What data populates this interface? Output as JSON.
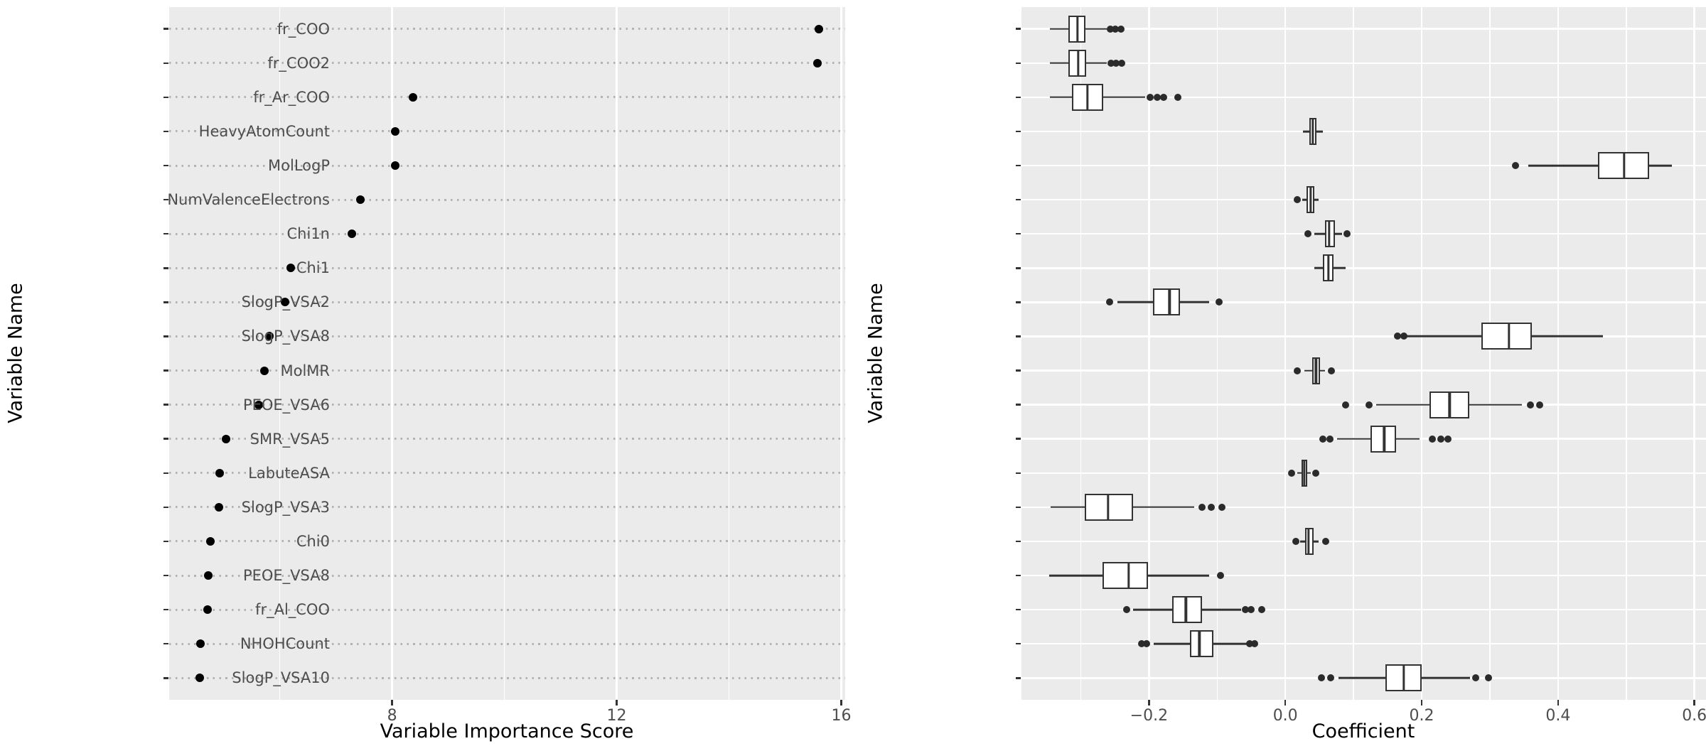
{
  "colors": {
    "panel_background": "#EBEBEB",
    "grid_major": "#FFFFFF",
    "dotted_guide": "#B3B3B3",
    "tick_mark": "#333333",
    "tick_label": "#4D4D4D",
    "axis_title": "#000000",
    "point": "#000000",
    "box_border": "#333333",
    "box_fill": "#FFFFFF"
  },
  "categories": [
    "fr_COO",
    "fr_COO2",
    "fr_Ar_COO",
    "HeavyAtomCount",
    "MolLogP",
    "NumValenceElectrons",
    "Chi1n",
    "Chi1",
    "SlogP_VSA2",
    "SlogP_VSA8",
    "MolMR",
    "PEOE_VSA6",
    "SMR_VSA5",
    "LabuteASA",
    "SlogP_VSA3",
    "Chi0",
    "PEOE_VSA8",
    "fr_Al_COO",
    "NHOHCount",
    "SlogP_VSA10"
  ],
  "chart_data": [
    {
      "type": "scatter",
      "subtype": "cleveland-dot-plot",
      "title": "",
      "xlabel": "Variable Importance Score",
      "ylabel": "Variable Name",
      "xlim": [
        4.03,
        16.07
      ],
      "xticks": [
        8,
        12,
        16
      ],
      "xtick_labels": [
        "8",
        "12",
        "16"
      ],
      "xticks_minor": [
        6,
        10,
        14
      ],
      "grid": "major-vertical-white-with-dotted-row-guides",
      "legend": "none",
      "categories": [
        "fr_COO",
        "fr_COO2",
        "fr_Ar_COO",
        "HeavyAtomCount",
        "MolLogP",
        "NumValenceElectrons",
        "Chi1n",
        "Chi1",
        "SlogP_VSA2",
        "SlogP_VSA8",
        "MolMR",
        "PEOE_VSA6",
        "SMR_VSA5",
        "LabuteASA",
        "SlogP_VSA3",
        "Chi0",
        "PEOE_VSA8",
        "fr_Al_COO",
        "NHOHCount",
        "SlogP_VSA10"
      ],
      "values": [
        15.6,
        15.58,
        8.37,
        8.06,
        8.05,
        7.43,
        7.29,
        6.19,
        6.09,
        5.82,
        5.73,
        5.63,
        5.04,
        4.93,
        4.91,
        4.76,
        4.72,
        4.71,
        4.59,
        4.57
      ]
    },
    {
      "type": "boxplot",
      "orientation": "horizontal",
      "title": "",
      "xlabel": "Coefficient",
      "ylabel": "Variable Name",
      "xlim": [
        -0.387,
        0.617
      ],
      "xticks": [
        -0.2,
        0.0,
        0.2,
        0.4,
        0.6
      ],
      "xtick_labels": [
        "−0.2",
        "0.0",
        "0.2",
        "0.4",
        "0.6"
      ],
      "xticks_minor": [
        -0.3,
        -0.1,
        0.1,
        0.3,
        0.5
      ],
      "grid": "major-white",
      "legend": "none",
      "categories": [
        "fr_COO",
        "fr_COO2",
        "fr_Ar_COO",
        "HeavyAtomCount",
        "MolLogP",
        "NumValenceElectrons",
        "Chi1n",
        "Chi1",
        "SlogP_VSA2",
        "SlogP_VSA8",
        "MolMR",
        "PEOE_VSA6",
        "SMR_VSA5",
        "LabuteASA",
        "SlogP_VSA3",
        "Chi0",
        "PEOE_VSA8",
        "fr_Al_COO",
        "NHOHCount",
        "SlogP_VSA10"
      ],
      "boxes": [
        {
          "whisker_low": -0.345,
          "q1": -0.318,
          "median": -0.305,
          "q3": -0.293,
          "whisker_high": -0.262,
          "outliers": [
            -0.257,
            -0.249,
            -0.241
          ]
        },
        {
          "whisker_low": -0.345,
          "q1": -0.318,
          "median": -0.304,
          "q3": -0.292,
          "whisker_high": -0.262,
          "outliers": [
            -0.256,
            -0.248,
            -0.24
          ]
        },
        {
          "whisker_low": -0.345,
          "q1": -0.313,
          "median": -0.29,
          "q3": -0.267,
          "whisker_high": -0.206,
          "outliers": [
            -0.198,
            -0.188,
            -0.179,
            -0.158
          ]
        },
        {
          "whisker_low": 0.026,
          "q1": 0.035,
          "median": 0.04,
          "q3": 0.046,
          "whisker_high": 0.055,
          "outliers": []
        },
        {
          "whisker_low": 0.356,
          "q1": 0.459,
          "median": 0.497,
          "q3": 0.534,
          "whisker_high": 0.567,
          "outliers": [
            0.338
          ]
        },
        {
          "whisker_low": 0.025,
          "q1": 0.031,
          "median": 0.037,
          "q3": 0.043,
          "whisker_high": 0.049,
          "outliers": [
            0.018
          ]
        },
        {
          "whisker_low": 0.043,
          "q1": 0.058,
          "median": 0.064,
          "q3": 0.073,
          "whisker_high": 0.083,
          "outliers": [
            0.033,
            0.091
          ]
        },
        {
          "whisker_low": 0.043,
          "q1": 0.055,
          "median": 0.063,
          "q3": 0.071,
          "whisker_high": 0.088,
          "outliers": []
        },
        {
          "whisker_low": -0.246,
          "q1": -0.194,
          "median": -0.17,
          "q3": -0.154,
          "whisker_high": -0.112,
          "outliers": [
            -0.258,
            -0.097
          ]
        },
        {
          "whisker_low": 0.177,
          "q1": 0.288,
          "median": 0.328,
          "q3": 0.362,
          "whisker_high": 0.466,
          "outliers": [
            0.165,
            0.174
          ]
        },
        {
          "whisker_low": 0.028,
          "q1": 0.039,
          "median": 0.045,
          "q3": 0.051,
          "whisker_high": 0.058,
          "outliers": [
            0.018,
            0.068
          ]
        },
        {
          "whisker_low": 0.133,
          "q1": 0.211,
          "median": 0.241,
          "q3": 0.27,
          "whisker_high": 0.347,
          "outliers": [
            0.088,
            0.123,
            0.36,
            0.373
          ]
        },
        {
          "whisker_low": 0.076,
          "q1": 0.125,
          "median": 0.145,
          "q3": 0.162,
          "whisker_high": 0.197,
          "outliers": [
            0.055,
            0.065,
            0.216,
            0.228,
            0.239
          ]
        },
        {
          "whisker_low": 0.017,
          "q1": 0.024,
          "median": 0.028,
          "q3": 0.032,
          "whisker_high": 0.037,
          "outliers": [
            0.009,
            0.045
          ]
        },
        {
          "whisker_low": -0.344,
          "q1": -0.294,
          "median": -0.26,
          "q3": -0.223,
          "whisker_high": -0.134,
          "outliers": [
            -0.122,
            -0.109,
            -0.093
          ]
        },
        {
          "whisker_low": 0.022,
          "q1": 0.029,
          "median": 0.034,
          "q3": 0.041,
          "whisker_high": 0.049,
          "outliers": [
            0.015,
            0.059
          ]
        },
        {
          "whisker_low": -0.346,
          "q1": -0.268,
          "median": -0.23,
          "q3": -0.201,
          "whisker_high": -0.112,
          "outliers": [
            -0.095
          ]
        },
        {
          "whisker_low": -0.223,
          "q1": -0.166,
          "median": -0.146,
          "q3": -0.122,
          "whisker_high": -0.065,
          "outliers": [
            -0.233,
            -0.059,
            -0.05,
            -0.035
          ]
        },
        {
          "whisker_low": -0.193,
          "q1": -0.14,
          "median": -0.126,
          "q3": -0.105,
          "whisker_high": -0.056,
          "outliers": [
            -0.211,
            -0.203,
            -0.052,
            -0.045
          ]
        },
        {
          "whisker_low": 0.078,
          "q1": 0.147,
          "median": 0.174,
          "q3": 0.2,
          "whisker_high": 0.271,
          "outliers": [
            0.053,
            0.066,
            0.279,
            0.298
          ]
        }
      ]
    }
  ]
}
